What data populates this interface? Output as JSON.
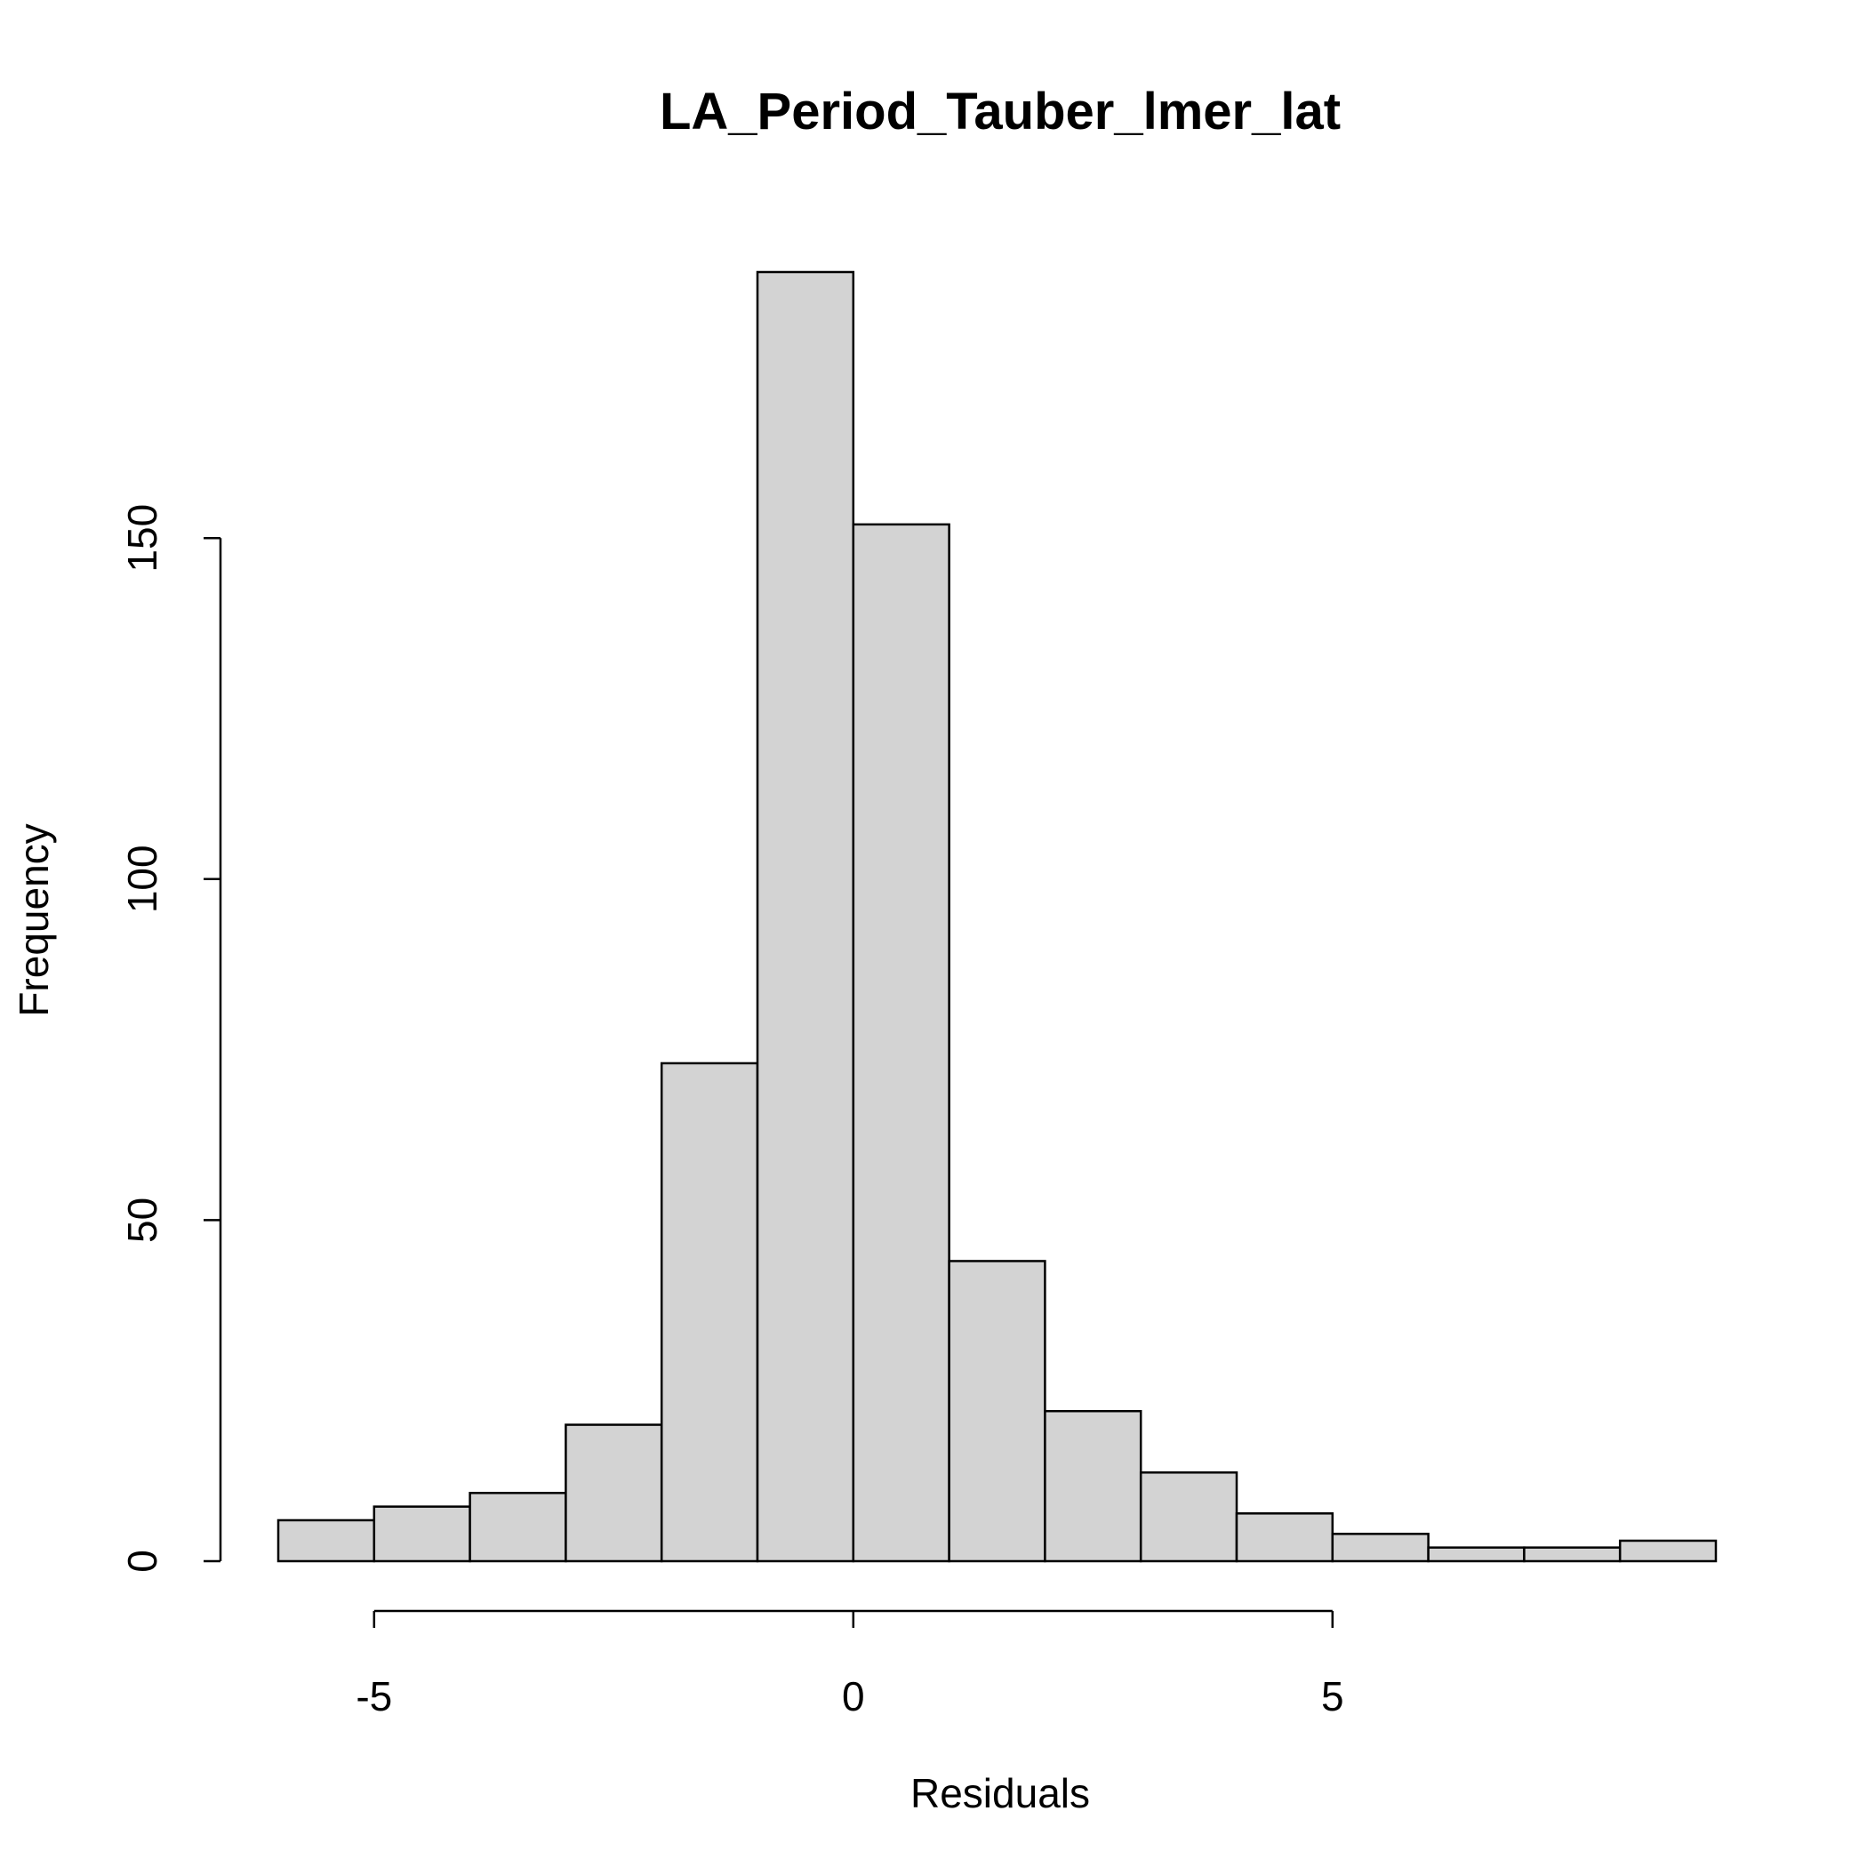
{
  "chart_data": {
    "type": "bar",
    "title": "LA_Period_Tauber_lmer_lat",
    "xlabel": "Residuals",
    "ylabel": "Frequency",
    "bin_edges": [
      -6,
      -5,
      -4,
      -3,
      -2,
      -1,
      0,
      1,
      2,
      3,
      4,
      5,
      6,
      7,
      8,
      9
    ],
    "values": [
      6,
      8,
      10,
      20,
      73,
      189,
      152,
      44,
      22,
      13,
      7,
      4,
      2,
      2,
      3
    ],
    "xlim": [
      -6,
      9
    ],
    "ylim": [
      0,
      189
    ],
    "x_ticks": [
      -5,
      0,
      5
    ],
    "x_tick_labels": [
      "-5",
      "0",
      "5"
    ],
    "y_ticks": [
      0,
      50,
      100,
      150
    ],
    "y_tick_labels": [
      "0",
      "50",
      "100",
      "150"
    ],
    "bar_fill": "#d3d3d3",
    "bar_stroke": "#000000",
    "grid": false,
    "legend": "none"
  }
}
